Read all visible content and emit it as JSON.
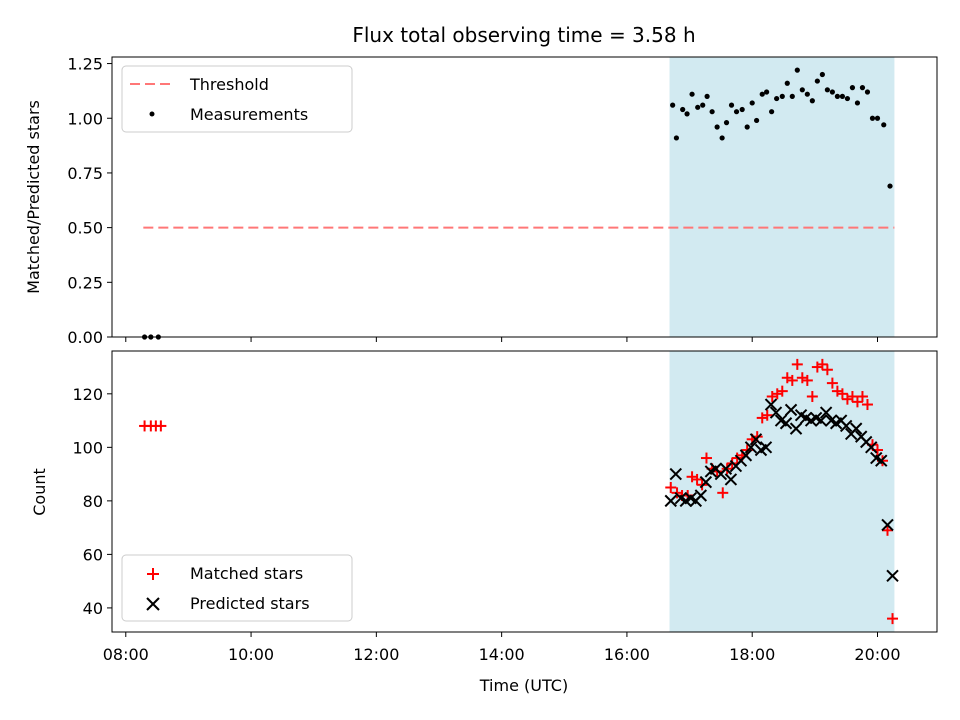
{
  "chart_data": [
    {
      "type": "scatter",
      "title": "Flux total observing time = 3.58 h",
      "ylabel": "Matched/Predicted stars",
      "xlabel": "",
      "ylim": [
        0,
        1.28
      ],
      "yticks": [
        "0.00",
        "0.25",
        "0.50",
        "0.75",
        "1.00",
        "1.25"
      ],
      "shaded_span": {
        "x_start": 16.68,
        "x_end": 20.27,
        "color": "#add8e6"
      },
      "threshold": {
        "name": "Threshold",
        "value": 0.5,
        "x_start": 8.28,
        "x_end": 20.27,
        "color": "#ff7777"
      },
      "series": [
        {
          "name": "Measurements",
          "color": "#000000",
          "marker": "dot",
          "points": [
            [
              8.3,
              0.0
            ],
            [
              8.4,
              0.0
            ],
            [
              8.52,
              0.0
            ],
            [
              16.73,
              1.06
            ],
            [
              16.79,
              0.91
            ],
            [
              16.89,
              1.04
            ],
            [
              16.96,
              1.02
            ],
            [
              17.04,
              1.11
            ],
            [
              17.13,
              1.05
            ],
            [
              17.21,
              1.06
            ],
            [
              17.28,
              1.1
            ],
            [
              17.36,
              1.03
            ],
            [
              17.44,
              0.96
            ],
            [
              17.52,
              0.91
            ],
            [
              17.59,
              0.98
            ],
            [
              17.67,
              1.06
            ],
            [
              17.75,
              1.03
            ],
            [
              17.84,
              1.04
            ],
            [
              17.92,
              0.96
            ],
            [
              18.0,
              1.07
            ],
            [
              18.07,
              0.99
            ],
            [
              18.16,
              1.11
            ],
            [
              18.23,
              1.12
            ],
            [
              18.31,
              1.03
            ],
            [
              18.39,
              1.09
            ],
            [
              18.48,
              1.1
            ],
            [
              18.56,
              1.16
            ],
            [
              18.64,
              1.1
            ],
            [
              18.72,
              1.22
            ],
            [
              18.8,
              1.13
            ],
            [
              18.88,
              1.11
            ],
            [
              18.96,
              1.08
            ],
            [
              19.04,
              1.17
            ],
            [
              19.12,
              1.2
            ],
            [
              19.2,
              1.13
            ],
            [
              19.28,
              1.12
            ],
            [
              19.36,
              1.1
            ],
            [
              19.44,
              1.1
            ],
            [
              19.52,
              1.09
            ],
            [
              19.6,
              1.14
            ],
            [
              19.68,
              1.07
            ],
            [
              19.76,
              1.14
            ],
            [
              19.84,
              1.12
            ],
            [
              19.92,
              1.0
            ],
            [
              20.0,
              1.0
            ],
            [
              20.1,
              0.97
            ],
            [
              20.2,
              0.69
            ]
          ]
        }
      ],
      "legend": {
        "position": "upper-left",
        "entries": [
          "Threshold",
          "Measurements"
        ]
      }
    },
    {
      "type": "scatter",
      "title": "",
      "ylabel": "Count",
      "xlabel": "Time (UTC)",
      "xlim": [
        7.78,
        20.95
      ],
      "ylim": [
        31,
        136
      ],
      "yticks": [
        "40",
        "60",
        "80",
        "100",
        "120"
      ],
      "xticks": [
        "08:00",
        "10:00",
        "12:00",
        "14:00",
        "16:00",
        "18:00",
        "20:00"
      ],
      "shaded_span": {
        "x_start": 16.68,
        "x_end": 20.27,
        "color": "#add8e6"
      },
      "series": [
        {
          "name": "Matched stars",
          "color": "#ff0000",
          "marker": "plus",
          "points": [
            [
              8.3,
              108
            ],
            [
              8.4,
              108
            ],
            [
              8.48,
              108
            ],
            [
              8.56,
              108
            ],
            [
              16.7,
              85
            ],
            [
              16.8,
              83
            ],
            [
              16.88,
              82
            ],
            [
              16.97,
              82
            ],
            [
              17.04,
              89
            ],
            [
              17.12,
              88
            ],
            [
              17.2,
              86
            ],
            [
              17.27,
              96
            ],
            [
              17.36,
              92
            ],
            [
              17.44,
              91
            ],
            [
              17.53,
              83
            ],
            [
              17.6,
              92
            ],
            [
              17.68,
              94
            ],
            [
              17.76,
              96
            ],
            [
              17.84,
              97
            ],
            [
              17.92,
              99
            ],
            [
              18.0,
              103
            ],
            [
              18.08,
              104
            ],
            [
              18.16,
              111
            ],
            [
              18.24,
              112
            ],
            [
              18.32,
              119
            ],
            [
              18.4,
              120
            ],
            [
              18.48,
              121
            ],
            [
              18.56,
              126
            ],
            [
              18.64,
              125
            ],
            [
              18.72,
              131
            ],
            [
              18.8,
              126
            ],
            [
              18.88,
              125
            ],
            [
              18.96,
              119
            ],
            [
              19.04,
              130
            ],
            [
              19.12,
              131
            ],
            [
              19.2,
              129
            ],
            [
              19.28,
              124
            ],
            [
              19.36,
              121
            ],
            [
              19.44,
              120
            ],
            [
              19.52,
              118
            ],
            [
              19.6,
              119
            ],
            [
              19.68,
              117
            ],
            [
              19.76,
              119
            ],
            [
              19.84,
              116
            ],
            [
              19.92,
              101
            ],
            [
              20.0,
              99
            ],
            [
              20.08,
              95
            ],
            [
              20.16,
              69
            ],
            [
              20.24,
              36
            ]
          ]
        },
        {
          "name": "Predicted stars",
          "color": "#000000",
          "marker": "cross",
          "points": [
            [
              16.7,
              80
            ],
            [
              16.78,
              90
            ],
            [
              16.86,
              81
            ],
            [
              16.94,
              80
            ],
            [
              17.02,
              81
            ],
            [
              17.1,
              80
            ],
            [
              17.18,
              82
            ],
            [
              17.26,
              87
            ],
            [
              17.34,
              91
            ],
            [
              17.42,
              92
            ],
            [
              17.5,
              90
            ],
            [
              17.58,
              92
            ],
            [
              17.66,
              88
            ],
            [
              17.74,
              93
            ],
            [
              17.82,
              95
            ],
            [
              17.9,
              97
            ],
            [
              17.98,
              100
            ],
            [
              18.06,
              103
            ],
            [
              18.14,
              99
            ],
            [
              18.22,
              100
            ],
            [
              18.3,
              116
            ],
            [
              18.38,
              113
            ],
            [
              18.46,
              110
            ],
            [
              18.54,
              109
            ],
            [
              18.62,
              114
            ],
            [
              18.7,
              107
            ],
            [
              18.78,
              112
            ],
            [
              18.86,
              111
            ],
            [
              18.94,
              110
            ],
            [
              19.02,
              111
            ],
            [
              19.1,
              110
            ],
            [
              19.18,
              113
            ],
            [
              19.26,
              110
            ],
            [
              19.34,
              109
            ],
            [
              19.42,
              110
            ],
            [
              19.5,
              108
            ],
            [
              19.58,
              105
            ],
            [
              19.66,
              107
            ],
            [
              19.74,
              104
            ],
            [
              19.82,
              102
            ],
            [
              19.9,
              100
            ],
            [
              19.98,
              96
            ],
            [
              20.06,
              95
            ],
            [
              20.16,
              71
            ],
            [
              20.24,
              52
            ]
          ]
        }
      ],
      "legend": {
        "position": "lower-left",
        "entries": [
          "Matched stars",
          "Predicted stars"
        ]
      }
    }
  ]
}
